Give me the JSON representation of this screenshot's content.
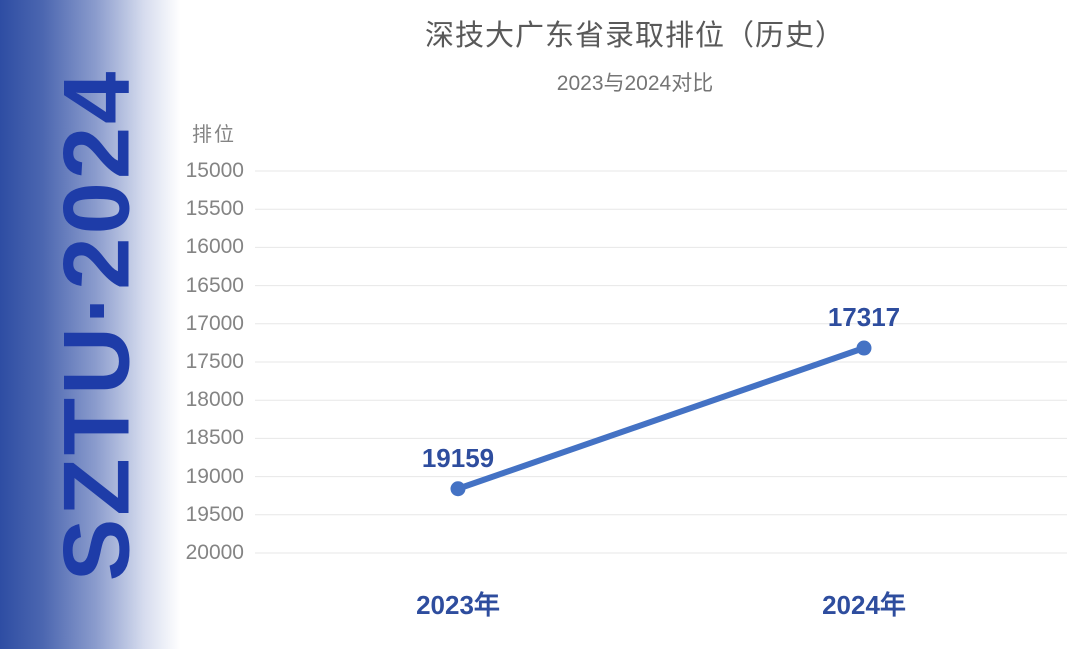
{
  "sidebar": {
    "brand_text": "SZTU·2024"
  },
  "chart_data": {
    "type": "line",
    "title": "深技大广东省录取排位（历史）",
    "subtitle": "2023与2024对比",
    "y_axis_title": "排位",
    "categories": [
      "2023年",
      "2024年"
    ],
    "series": [
      {
        "values": [
          19159,
          17317
        ]
      }
    ],
    "data_labels": [
      "19159",
      "17317"
    ],
    "ylim": [
      15000,
      20000
    ],
    "y_axis_inverted": true,
    "yticks": [
      15000,
      15500,
      16000,
      16500,
      17000,
      17500,
      18000,
      18500,
      19000,
      19500,
      20000
    ],
    "grid": true,
    "legend": "none",
    "colors": {
      "line": "#4472c4",
      "marker": "#4472c4",
      "data_label": "#2e4d9e",
      "category_label": "#2e4d9e",
      "tick_label": "#848484",
      "title": "#595959",
      "subtitle": "#757575",
      "gridline": "#e7e7e7",
      "brand_text": "#1e3ca8",
      "banner_gradient_start": "#2e4da3",
      "banner_gradient_end": "#ffffff"
    }
  }
}
